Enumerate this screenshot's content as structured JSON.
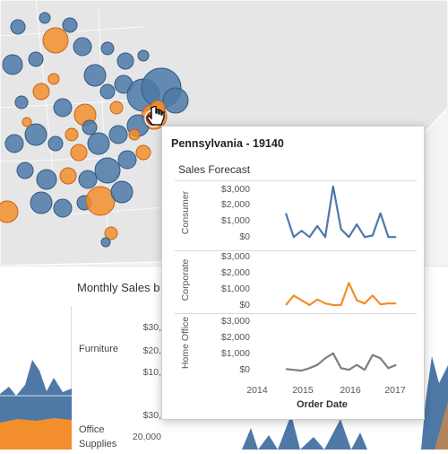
{
  "dashboard": {
    "title": "Monthly Sales b",
    "rows": [
      {
        "label": "Furniture",
        "ticks": [
          "$30,",
          "$20,",
          "$10,"
        ]
      },
      {
        "label": "Office Supplies",
        "ticks": [
          "$30,",
          "20,000"
        ]
      }
    ]
  },
  "tooltip": {
    "title": "Pennsylvania - 19140",
    "subtitle": "Sales Forecast",
    "x_title": "Order Date",
    "x_ticks": [
      "2014",
      "2015",
      "2016",
      "2017"
    ],
    "segments": [
      {
        "name": "Consumer",
        "color": "#4e79a7",
        "ticks": [
          "$3,000",
          "$2,000",
          "$1,000",
          "$0"
        ]
      },
      {
        "name": "Corporate",
        "color": "#f28e2b",
        "ticks": [
          "$3,000",
          "$2,000",
          "$1,000",
          "$0"
        ]
      },
      {
        "name": "Home Office",
        "color": "#7f7f7f",
        "ticks": [
          "$3,000",
          "$2,000",
          "$1,000",
          "$0"
        ]
      }
    ]
  },
  "chart_data": {
    "type": "line",
    "title": "Sales Forecast",
    "xlabel": "Order Date",
    "ylabel": "",
    "x": [
      2014.6,
      2014.8,
      2015.0,
      2015.2,
      2015.4,
      2015.6,
      2015.8,
      2016.0,
      2016.2,
      2016.4,
      2016.6,
      2016.8,
      2017.0,
      2017.2,
      2017.4
    ],
    "ylim": [
      0,
      3500
    ],
    "series": [
      {
        "name": "Consumer",
        "values": [
          1600,
          100,
          500,
          100,
          800,
          100,
          3300,
          600,
          100,
          900,
          100,
          200,
          1600,
          100,
          100
        ]
      },
      {
        "name": "Corporate",
        "values": [
          0,
          600,
          300,
          0,
          350,
          100,
          0,
          0,
          1400,
          300,
          100,
          600,
          50,
          100,
          100
        ]
      },
      {
        "name": "Home Office",
        "values": [
          150,
          100,
          50,
          200,
          400,
          800,
          1100,
          200,
          100,
          400,
          100,
          1000,
          800,
          200,
          400
        ]
      }
    ]
  }
}
